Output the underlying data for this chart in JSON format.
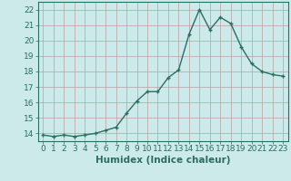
{
  "x": [
    0,
    1,
    2,
    3,
    4,
    5,
    6,
    7,
    8,
    9,
    10,
    11,
    12,
    13,
    14,
    15,
    16,
    17,
    18,
    19,
    20,
    21,
    22,
    23
  ],
  "y": [
    13.9,
    13.8,
    13.9,
    13.8,
    13.9,
    14.0,
    14.2,
    14.4,
    15.3,
    16.1,
    16.7,
    16.7,
    17.6,
    18.1,
    20.4,
    22.0,
    20.7,
    21.5,
    21.1,
    19.6,
    18.5,
    18.0,
    17.8,
    17.7
  ],
  "line_color": "#2a6e62",
  "marker": "P",
  "marker_size": 2.5,
  "linewidth": 1.0,
  "xlabel": "Humidex (Indice chaleur)",
  "xlim": [
    -0.5,
    23.5
  ],
  "ylim": [
    13.5,
    22.5
  ],
  "yticks": [
    14,
    15,
    16,
    17,
    18,
    19,
    20,
    21,
    22
  ],
  "xticks": [
    0,
    1,
    2,
    3,
    4,
    5,
    6,
    7,
    8,
    9,
    10,
    11,
    12,
    13,
    14,
    15,
    16,
    17,
    18,
    19,
    20,
    21,
    22,
    23
  ],
  "bg_color": "#cdeaea",
  "grid_color": "#b8a0a0",
  "tick_color": "#2a6e62",
  "xlabel_color": "#2a6e62",
  "xlabel_fontsize": 7.5,
  "tick_fontsize": 6.5
}
